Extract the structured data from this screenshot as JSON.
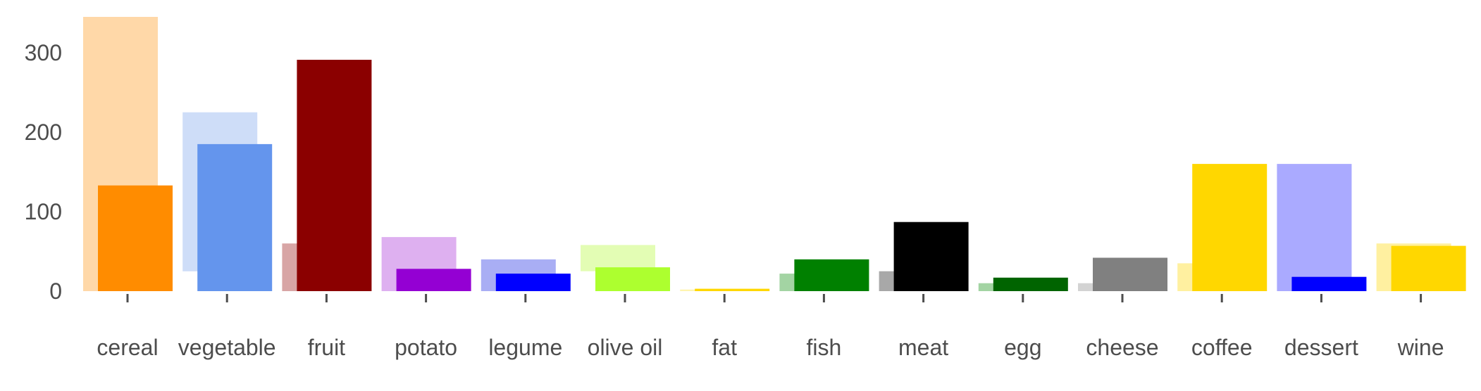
{
  "chart_data": {
    "type": "bar",
    "categories": [
      "cereal",
      "vegetable",
      "fruit",
      "potato",
      "legume",
      "olive oil",
      "fat",
      "fish",
      "meat",
      "egg",
      "cheese",
      "coffee",
      "dessert",
      "wine"
    ],
    "yticks": [
      0,
      100,
      200,
      300
    ],
    "ylim": [
      0,
      345
    ],
    "grid": false,
    "series": [
      {
        "values": [
          345,
          225,
          60,
          68,
          40,
          58,
          2,
          22,
          25,
          10,
          10,
          35,
          160,
          60
        ],
        "base": [
          0,
          25,
          0,
          0,
          0,
          25,
          0,
          0,
          0,
          0,
          0,
          0,
          0,
          0
        ],
        "colors": [
          "#FFD8A8",
          "#CEDDF8",
          "#D8A5A5",
          "#DEB0F0",
          "#A9AEF4",
          "#E3FDB4",
          "#FFF5B0",
          "#A3D4A3",
          "#A8A8A8",
          "#A3D4A3",
          "#D3D3D3",
          "#FFF0A0",
          "#AAAAFF",
          "#FFF0A0"
        ]
      },
      {
        "values": [
          133,
          185,
          291,
          28,
          22,
          30,
          3,
          40,
          87,
          17,
          42,
          160,
          18,
          57
        ],
        "colors": [
          "#FF8C00",
          "#6495ED",
          "#8B0000",
          "#9400D3",
          "#0000FF",
          "#ADFF2F",
          "#FFD700",
          "#008000",
          "#000000",
          "#006400",
          "#808080",
          "#FFD700",
          "#0000FF",
          "#FFD700"
        ]
      }
    ]
  }
}
